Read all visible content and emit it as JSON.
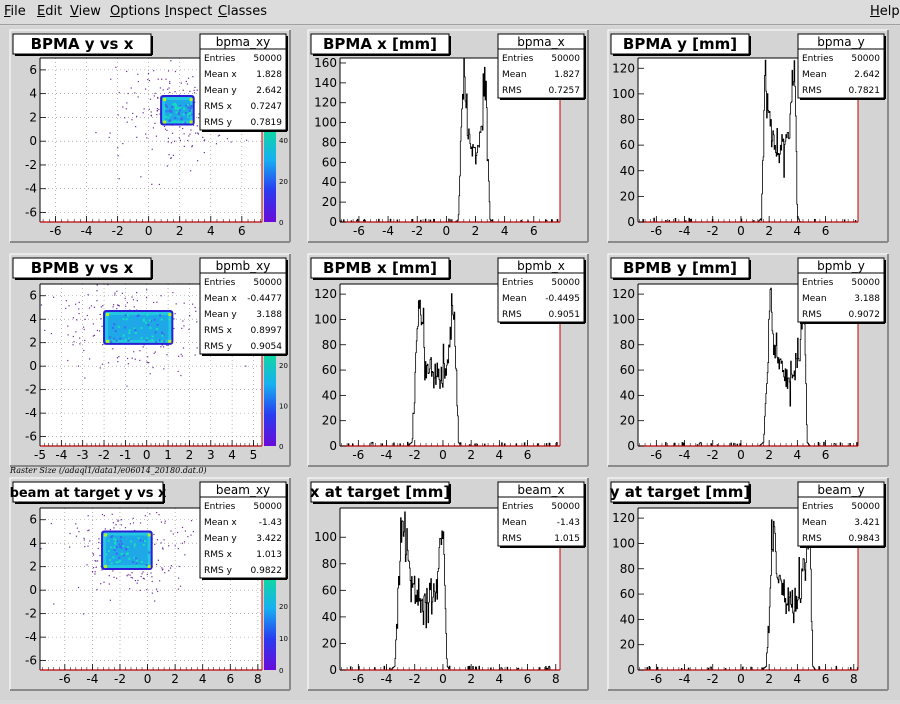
{
  "menu": {
    "file": {
      "acc": "F",
      "rest": "ile"
    },
    "edit": {
      "acc": "E",
      "rest": "dit"
    },
    "view": {
      "acc": "V",
      "rest": "iew"
    },
    "options": {
      "acc": "O",
      "rest": "ptions"
    },
    "inspect": {
      "acc": "I",
      "rest": "nspect"
    },
    "classes": {
      "acc": "C",
      "rest": "lasses"
    },
    "help": {
      "acc": "H",
      "rest": "elp"
    }
  },
  "note": "Raster Size (/adaql1/data1/e06014_20180.dat.0)",
  "colors": {
    "frame": "#000000",
    "axis_red": "#c00000",
    "hist": "#000000"
  },
  "chart_data": [
    {
      "type": "heatmap",
      "title": "BPMA y vs x",
      "xlim": [
        -7,
        7.3
      ],
      "ylim": [
        -6.8,
        7
      ],
      "xticks": [
        -6,
        -4,
        -2,
        0,
        2,
        4,
        6
      ],
      "yticks": [
        -6,
        -4,
        -2,
        0,
        2,
        4,
        6
      ],
      "zticks": [
        "0",
        "20",
        "40",
        "60"
      ],
      "stats": {
        "name": "bpma_xy",
        "rows": [
          [
            "Entries",
            "50000"
          ],
          [
            "Mean x",
            "1.828"
          ],
          [
            "Mean y",
            "2.642"
          ],
          [
            "RMS x",
            "0.7247"
          ],
          [
            "RMS y",
            "0.7819"
          ]
        ]
      },
      "core": {
        "x": [
          0.8,
          2.9
        ],
        "y": [
          1.4,
          3.8
        ]
      }
    },
    {
      "type": "line",
      "title": "BPMA x [mm]",
      "xlim": [
        -7.3,
        7.8
      ],
      "ylim": [
        0,
        165
      ],
      "xticks": [
        -6,
        -4,
        -2,
        0,
        2,
        4,
        6
      ],
      "yticks": [
        0,
        20,
        40,
        60,
        80,
        100,
        120,
        140,
        160
      ],
      "stats": {
        "name": "bpma_x",
        "rows": [
          [
            "Entries",
            "50000"
          ],
          [
            "Mean",
            "1.827"
          ],
          [
            "RMS",
            "0.7257"
          ]
        ]
      },
      "x": [
        0.6,
        0.8,
        0.95,
        1.05,
        1.15,
        1.25,
        1.4,
        1.6,
        1.8,
        2.0,
        2.2,
        2.4,
        2.55,
        2.65,
        2.75,
        2.85,
        3.0,
        3.2
      ],
      "y": [
        0,
        2,
        50,
        110,
        155,
        140,
        110,
        80,
        70,
        65,
        72,
        85,
        115,
        150,
        140,
        60,
        3,
        0
      ]
    },
    {
      "type": "line",
      "title": "BPMA y [mm]",
      "xlim": [
        -7.3,
        8.3
      ],
      "ylim": [
        0,
        128
      ],
      "xticks": [
        -6,
        -4,
        -2,
        0,
        2,
        4,
        6
      ],
      "yticks": [
        0,
        20,
        40,
        60,
        80,
        100,
        120
      ],
      "stats": {
        "name": "bpma_y",
        "rows": [
          [
            "Entries",
            "50000"
          ],
          [
            "Mean",
            "2.642"
          ],
          [
            "RMS",
            "0.7821"
          ]
        ]
      },
      "x": [
        1.2,
        1.45,
        1.6,
        1.75,
        1.85,
        2.0,
        2.2,
        2.5,
        2.8,
        3.1,
        3.4,
        3.6,
        3.75,
        3.85,
        4.0,
        4.2
      ],
      "y": [
        0,
        3,
        60,
        120,
        105,
        85,
        70,
        62,
        58,
        62,
        70,
        85,
        118,
        105,
        5,
        0
      ]
    },
    {
      "type": "heatmap",
      "title": "BPMB y vs x",
      "xlim": [
        -5,
        5.4
      ],
      "ylim": [
        -6.8,
        7
      ],
      "xticks": [
        -5,
        -4,
        -3,
        -2,
        -1,
        0,
        1,
        2,
        3,
        4,
        5
      ],
      "yticks": [
        -6,
        -4,
        -2,
        0,
        2,
        4,
        6
      ],
      "zticks": [
        "0",
        "10",
        "20",
        "30"
      ],
      "stats": {
        "name": "bpmb_xy",
        "rows": [
          [
            "Entries",
            "50000"
          ],
          [
            "Mean x",
            "-0.4477"
          ],
          [
            "Mean y",
            "3.188"
          ],
          [
            "RMS x",
            "0.8997"
          ],
          [
            "RMS y",
            "0.9054"
          ]
        ]
      },
      "core": {
        "x": [
          -2.0,
          1.2
        ],
        "y": [
          1.9,
          4.7
        ]
      }
    },
    {
      "type": "line",
      "title": "BPMB x [mm]",
      "xlim": [
        -7.3,
        8.3
      ],
      "ylim": [
        0,
        128
      ],
      "xticks": [
        -6,
        -4,
        -2,
        0,
        2,
        4,
        6
      ],
      "yticks": [
        0,
        20,
        40,
        60,
        80,
        100,
        120
      ],
      "stats": {
        "name": "bpmb_x",
        "rows": [
          [
            "Entries",
            "50000"
          ],
          [
            "Mean",
            "-0.4495"
          ],
          [
            "RMS",
            "0.9051"
          ]
        ]
      },
      "x": [
        -2.5,
        -2.2,
        -2.0,
        -1.85,
        -1.7,
        -1.5,
        -1.2,
        -0.9,
        -0.6,
        -0.3,
        0.0,
        0.3,
        0.55,
        0.75,
        0.95,
        1.1,
        1.3
      ],
      "y": [
        0,
        3,
        40,
        90,
        115,
        95,
        72,
        60,
        55,
        52,
        58,
        68,
        88,
        110,
        60,
        3,
        0
      ]
    },
    {
      "type": "line",
      "title": "BPMB y [mm]",
      "xlim": [
        -7.3,
        8.3
      ],
      "ylim": [
        0,
        128
      ],
      "xticks": [
        -6,
        -4,
        -2,
        0,
        2,
        4,
        6
      ],
      "yticks": [
        0,
        20,
        40,
        60,
        80,
        100,
        120
      ],
      "stats": {
        "name": "bpmb_y",
        "rows": [
          [
            "Entries",
            "50000"
          ],
          [
            "Mean",
            "3.188"
          ],
          [
            "RMS",
            "0.9072"
          ]
        ]
      },
      "x": [
        1.3,
        1.6,
        1.85,
        2.0,
        2.15,
        2.35,
        2.7,
        3.0,
        3.3,
        3.6,
        3.9,
        4.2,
        4.4,
        4.55,
        4.7,
        4.9
      ],
      "y": [
        0,
        3,
        50,
        100,
        110,
        80,
        62,
        55,
        52,
        56,
        65,
        80,
        112,
        95,
        3,
        0
      ]
    },
    {
      "type": "heatmap",
      "title": "beam at target y vs x",
      "xlim": [
        -7.8,
        8.3
      ],
      "ylim": [
        -6.8,
        7
      ],
      "xticks": [
        -6,
        -4,
        -2,
        0,
        2,
        4,
        6,
        8
      ],
      "yticks": [
        -6,
        -4,
        -2,
        0,
        2,
        4,
        6
      ],
      "zticks": [
        "0",
        "10",
        "20",
        "30",
        "40"
      ],
      "stats": {
        "name": "beam_xy",
        "rows": [
          [
            "Entries",
            "50000"
          ],
          [
            "Mean x",
            "-1.43"
          ],
          [
            "Mean y",
            "3.422"
          ],
          [
            "RMS x",
            "1.013"
          ],
          [
            "RMS y",
            "0.9822"
          ]
        ]
      },
      "core": {
        "x": [
          -3.3,
          0.3
        ],
        "y": [
          1.8,
          5.0
        ]
      }
    },
    {
      "type": "line",
      "title": "x at target [mm]",
      "xlim": [
        -7.3,
        8.3
      ],
      "ylim": [
        0,
        122
      ],
      "xticks": [
        -6,
        -4,
        -2,
        0,
        2,
        4,
        6,
        8
      ],
      "yticks": [
        0,
        20,
        40,
        60,
        80,
        100
      ],
      "stats": {
        "name": "beam_x",
        "rows": [
          [
            "Entries",
            "50000"
          ],
          [
            "Mean",
            "-1.43"
          ],
          [
            "RMS",
            "1.015"
          ]
        ]
      },
      "x": [
        -3.7,
        -3.4,
        -3.2,
        -3.0,
        -2.8,
        -2.6,
        -2.2,
        -1.8,
        -1.4,
        -1.0,
        -0.6,
        -0.3,
        -0.1,
        0.1,
        0.3,
        0.5
      ],
      "y": [
        0,
        3,
        45,
        95,
        115,
        90,
        65,
        55,
        50,
        52,
        60,
        78,
        100,
        95,
        3,
        0
      ]
    },
    {
      "type": "line",
      "title": "y at target [mm]",
      "xlim": [
        -7.3,
        8.3
      ],
      "ylim": [
        0,
        128
      ],
      "xticks": [
        -6,
        -4,
        -2,
        0,
        2,
        4,
        6,
        8
      ],
      "yticks": [
        0,
        20,
        40,
        60,
        80,
        100,
        120
      ],
      "stats": {
        "name": "beam_y",
        "rows": [
          [
            "Entries",
            "50000"
          ],
          [
            "Mean",
            "3.421"
          ],
          [
            "RMS",
            "0.9843"
          ]
        ]
      },
      "x": [
        1.5,
        1.8,
        2.05,
        2.2,
        2.35,
        2.55,
        2.9,
        3.3,
        3.7,
        4.0,
        4.3,
        4.6,
        4.8,
        4.95,
        5.1,
        5.3
      ],
      "y": [
        0,
        3,
        45,
        95,
        115,
        88,
        64,
        55,
        52,
        56,
        66,
        82,
        115,
        92,
        3,
        0
      ]
    }
  ]
}
